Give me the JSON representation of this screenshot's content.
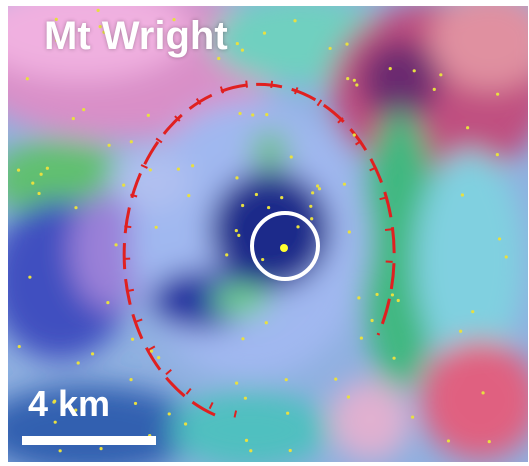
{
  "title": "Mt Wright",
  "scale_bar": {
    "label": "4 km"
  }
}
